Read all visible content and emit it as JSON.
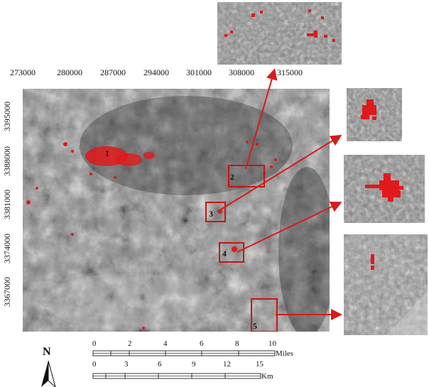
{
  "x_axis_ticks": [
    "273000",
    "280000",
    "287000",
    "294000",
    "301000",
    "308000",
    "315000"
  ],
  "y_axis_ticks": [
    "3395000",
    "3388000",
    "3381000",
    "3374000",
    "3367000"
  ],
  "areas": [
    "1",
    "2",
    "3",
    "4",
    "5"
  ],
  "scale_bar": {
    "miles_ticks": [
      "0",
      "2",
      "4",
      "6",
      "8",
      "10"
    ],
    "miles_label": "Miles",
    "km_ticks": [
      "0",
      "3",
      "6",
      "9",
      "12",
      "15"
    ],
    "km_label": "Km"
  },
  "north_arrow": "N",
  "colors": {
    "anomaly": "#e0191b",
    "box": "#c81414"
  }
}
